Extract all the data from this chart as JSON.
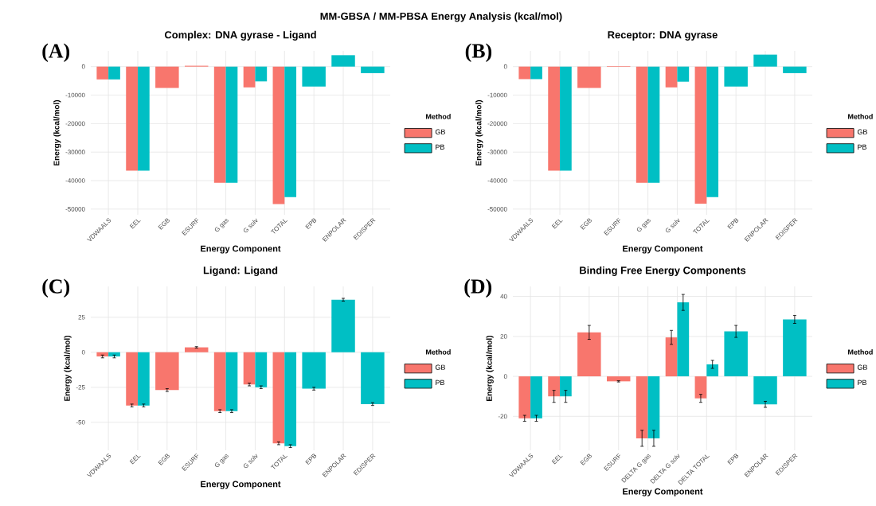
{
  "chart_data": [
    {
      "type": "bar",
      "title": "Complex: DNA gyrase - Ligand",
      "xlabel": "Energy Component",
      "ylabel": "Energy (kcal/mol)",
      "legend_title": "Method",
      "categories": [
        "VDWAALS",
        "EEL",
        "EGB",
        "ESURF",
        "G gas",
        "G solv",
        "TOTAL",
        "EPB",
        "ENPOLAR",
        "EDISPER"
      ],
      "series": [
        {
          "name": "GB",
          "color": "#f8766d",
          "values": [
            -4500,
            -36500,
            -7500,
            300,
            -40800,
            -7300,
            -48200,
            null,
            null,
            null
          ]
        },
        {
          "name": "PB",
          "color": "#00bfc4",
          "values": [
            -4500,
            -36500,
            null,
            null,
            -40800,
            -5200,
            -45800,
            -7000,
            4000,
            -2300
          ]
        }
      ],
      "ylim": [
        -52000,
        5500
      ],
      "yticks": [
        -50000,
        -40000,
        -30000,
        -20000,
        -10000,
        0
      ],
      "grid": true,
      "legend": "right",
      "annotations": [
        "MM-GBSA / MM-PBSA Energy Analysis (kcal/mol)",
        "(A)"
      ]
    },
    {
      "type": "bar",
      "title": "Receptor: DNA gyrase",
      "xlabel": "Energy Component",
      "ylabel": "Energy (kcal/mol)",
      "legend_title": "Method",
      "categories": [
        "VDWAALS",
        "EEL",
        "EGB",
        "ESURF",
        "G gas",
        "G solv",
        "TOTAL",
        "EPB",
        "ENPOLAR",
        "EDISPER"
      ],
      "series": [
        {
          "name": "GB",
          "color": "#f8766d",
          "values": [
            -4400,
            -36500,
            -7500,
            200,
            -40800,
            -7300,
            -48100,
            null,
            null,
            null
          ]
        },
        {
          "name": "PB",
          "color": "#00bfc4",
          "values": [
            -4400,
            -36500,
            null,
            null,
            -40800,
            -5300,
            -45800,
            -7000,
            4200,
            -2300
          ]
        }
      ],
      "ylim": [
        -52000,
        5500
      ],
      "yticks": [
        -50000,
        -40000,
        -30000,
        -20000,
        -10000,
        0
      ],
      "grid": true,
      "legend": "right",
      "annotations": [
        "(B)"
      ]
    },
    {
      "type": "bar",
      "title": "Ligand: Ligand",
      "xlabel": "Energy Component",
      "ylabel": "Energy (kcal/mol)",
      "legend_title": "Method",
      "categories": [
        "VDWAALS",
        "EEL",
        "EGB",
        "ESURF",
        "G gas",
        "G solv",
        "TOTAL",
        "EPB",
        "ENPOLAR",
        "EDISPER"
      ],
      "series": [
        {
          "name": "GB",
          "color": "#f8766d",
          "values": [
            -3,
            -38,
            -27,
            3.5,
            -42,
            -23,
            -65,
            null,
            null,
            null
          ],
          "errors": [
            1,
            1,
            1,
            0.5,
            1,
            1,
            1,
            null,
            null,
            null
          ]
        },
        {
          "name": "PB",
          "color": "#00bfc4",
          "values": [
            -3,
            -38,
            null,
            null,
            -42,
            -25,
            -67,
            -26,
            37.5,
            -37
          ],
          "errors": [
            1,
            1,
            null,
            null,
            1,
            1,
            1,
            1,
            1,
            1
          ]
        }
      ],
      "ylim": [
        -70,
        47
      ],
      "yticks": [
        -50,
        -25,
        0,
        25
      ],
      "grid": true,
      "legend": "right",
      "annotations": [
        "(C)"
      ]
    },
    {
      "type": "bar",
      "title": "Binding Free Energy Components",
      "xlabel": "Energy Component",
      "ylabel": "Energy (kcal/mol)",
      "legend_title": "Method",
      "categories": [
        "VDWAALS",
        "EEL",
        "EGB",
        "ESURF",
        "DELTA G gas",
        "DELTA G solv",
        "DELTA TOTAL",
        "EPB",
        "ENPOLAR",
        "EDISPER"
      ],
      "series": [
        {
          "name": "GB",
          "color": "#f8766d",
          "values": [
            -21,
            -10,
            22,
            -2.5,
            -31,
            19.5,
            -11,
            null,
            null,
            null
          ],
          "errors": [
            1.5,
            3,
            3.5,
            0.3,
            4,
            3.5,
            2,
            null,
            null,
            null
          ]
        },
        {
          "name": "PB",
          "color": "#00bfc4",
          "values": [
            -21,
            -10,
            null,
            null,
            -31,
            37,
            6,
            22.5,
            -14,
            28.5
          ],
          "errors": [
            1.5,
            3,
            null,
            null,
            4,
            4,
            2,
            3,
            1.5,
            2
          ]
        }
      ],
      "ylim": [
        -37,
        45
      ],
      "yticks": [
        -20,
        0,
        20,
        40
      ],
      "grid": true,
      "legend": "right",
      "annotations": [
        "(D)"
      ]
    }
  ]
}
